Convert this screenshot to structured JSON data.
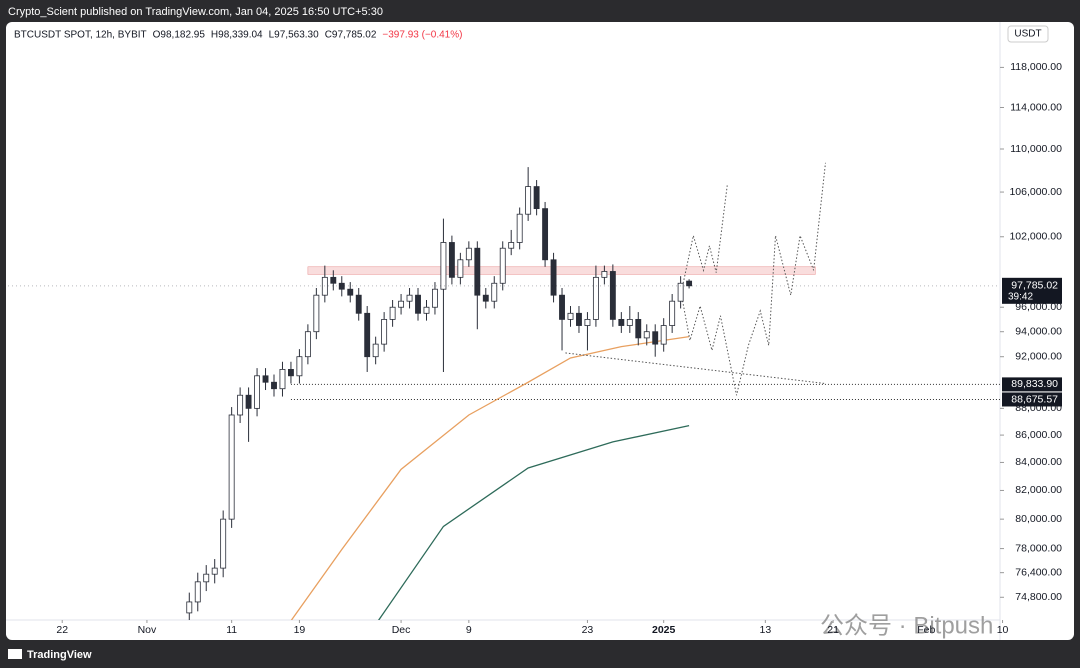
{
  "header": "Crypto_Scient published on TradingView.com, Jan 04, 2025 16:50 UTC+5:30",
  "footer": "TradingView",
  "watermark": "公众号 · Bitpush",
  "chart_data": {
    "type": "candlestick",
    "legend": [
      "BTCUSDT SPOT, 12h, BYBIT",
      "O98,182.95",
      "H98,339.04",
      "L97,563.30",
      "C97,785.02",
      "−397.93 (−0.41%)"
    ],
    "currency": "USDT",
    "log_scale": true,
    "up_color": "#ffffff",
    "down_color": "#2a2e39",
    "wick_color": "#2a2e39",
    "xlim": [
      -6.4,
      110.7
    ],
    "xticks": [
      {
        "value": 0,
        "label": "22"
      },
      {
        "value": 10,
        "label": "Nov"
      },
      {
        "value": 20,
        "label": "11"
      },
      {
        "value": 28,
        "label": "19"
      },
      {
        "value": 40,
        "label": "Dec"
      },
      {
        "value": 48,
        "label": "9"
      },
      {
        "value": 62,
        "label": "23"
      },
      {
        "value": 71,
        "label": "2025"
      },
      {
        "value": 83,
        "label": "13"
      },
      {
        "value": 91,
        "label": "21"
      },
      {
        "value": 102,
        "label": "Feb"
      },
      {
        "value": 111,
        "label": "10"
      }
    ],
    "ylim": [
      72100,
      122700
    ],
    "yticks": [
      {
        "value": 74800,
        "label": "74,800.00"
      },
      {
        "value": 76400,
        "label": "76,400.00"
      },
      {
        "value": 78000,
        "label": "78,000.00"
      },
      {
        "value": 80000,
        "label": "80,000.00"
      },
      {
        "value": 82000,
        "label": "82,000.00"
      },
      {
        "value": 84000,
        "label": "84,000.00"
      },
      {
        "value": 86000,
        "label": "86,000.00"
      },
      {
        "value": 88000,
        "label": "88,000.00"
      },
      {
        "value": 92000,
        "label": "92,000.00"
      },
      {
        "value": 94000,
        "label": "94,000.00"
      },
      {
        "value": 96000,
        "label": "96,000.00"
      },
      {
        "value": 102000,
        "label": "102,000.00"
      },
      {
        "value": 106000,
        "label": "106,000.00"
      },
      {
        "value": 110000,
        "label": "110,000.00"
      },
      {
        "value": 114000,
        "label": "114,000.00"
      },
      {
        "value": 118000,
        "label": "118,000.00"
      }
    ],
    "x": [
      15,
      16,
      17,
      18,
      19,
      20,
      21,
      22,
      23,
      24,
      25,
      26,
      27,
      28,
      29,
      30,
      31,
      32,
      33,
      34,
      35,
      36,
      37,
      38,
      39,
      40,
      41,
      42,
      43,
      44,
      45,
      46,
      47,
      48,
      49,
      50,
      51,
      52,
      53,
      54,
      55,
      56,
      57,
      58,
      59,
      60,
      61,
      62,
      63,
      64,
      65,
      66,
      67,
      68,
      69,
      70,
      71,
      72,
      73,
      74
    ],
    "open": [
      73800,
      74500,
      75800,
      76300,
      76700,
      80000,
      87500,
      89000,
      88000,
      90500,
      90000,
      89500,
      91000,
      90500,
      92000,
      94000,
      97000,
      98500,
      98000,
      97500,
      97000,
      95500,
      92000,
      93000,
      95000,
      96000,
      96500,
      97000,
      95500,
      96000,
      97500,
      101500,
      98500,
      100000,
      101000,
      97000,
      96500,
      98000,
      101000,
      101500,
      104000,
      106500,
      104500,
      100000,
      97000,
      95000,
      95500,
      94500,
      95000,
      98500,
      99000,
      95000,
      94500,
      95000,
      93500,
      94000,
      93000,
      94500,
      96500,
      98182.95
    ],
    "high": [
      75100,
      76400,
      76900,
      77300,
      80600,
      88100,
      89600,
      89600,
      91100,
      91100,
      90600,
      91600,
      91600,
      92600,
      94600,
      97600,
      99500,
      99100,
      98600,
      98100,
      97600,
      96100,
      93600,
      95600,
      96600,
      97100,
      97600,
      97600,
      96600,
      98100,
      103600,
      102100,
      100600,
      101600,
      101600,
      97600,
      98600,
      101600,
      102600,
      104600,
      108300,
      107100,
      105100,
      100600,
      97600,
      96100,
      96100,
      95600,
      99500,
      99500,
      99600,
      95600,
      96100,
      95600,
      94600,
      94600,
      95100,
      97100,
      98600,
      98339.04
    ],
    "low": [
      73200,
      73900,
      75200,
      75700,
      76100,
      79400,
      86900,
      85500,
      87400,
      89400,
      88900,
      88900,
      89900,
      89900,
      91400,
      93400,
      96400,
      97400,
      96900,
      96400,
      94900,
      90800,
      91400,
      92400,
      94400,
      95400,
      95900,
      94900,
      94900,
      95400,
      90800,
      97900,
      97900,
      99400,
      94200,
      95900,
      95900,
      97400,
      100400,
      100900,
      103400,
      103900,
      99400,
      96400,
      92500,
      94400,
      93900,
      92500,
      94400,
      97900,
      94400,
      93900,
      93900,
      92900,
      92900,
      92000,
      92400,
      93900,
      95900,
      97563.3
    ],
    "close": [
      74500,
      75800,
      76300,
      76700,
      80000,
      87500,
      89000,
      88000,
      90500,
      90000,
      89500,
      91000,
      90500,
      92000,
      94000,
      97000,
      98500,
      98000,
      97500,
      97000,
      95500,
      92000,
      93000,
      95000,
      96000,
      96500,
      97000,
      95500,
      96000,
      97500,
      101500,
      98500,
      100000,
      101000,
      97000,
      96500,
      98000,
      101000,
      101500,
      104000,
      106500,
      104500,
      100000,
      97000,
      95000,
      95500,
      94500,
      95000,
      98500,
      99000,
      95000,
      94500,
      95000,
      93500,
      94000,
      93000,
      94500,
      96500,
      98000,
      97785.02
    ],
    "last_price": {
      "value": 97785.02,
      "label": "97,785.02"
    },
    "countdown": "39:42",
    "zone": {
      "x": [
        29,
        88.9
      ],
      "y": [
        98750,
        99400
      ],
      "color": "#f5c6c6"
    },
    "hlines": [
      {
        "value": 89833.9,
        "label": "89,833.90",
        "x_start": 27
      },
      {
        "value": 88675.57,
        "label": "88,675.57",
        "x_start": 27
      }
    ],
    "lines": [
      {
        "color": "#e8a060",
        "style": "solid",
        "x": [
          27,
          33,
          40,
          48,
          55,
          60,
          66,
          74
        ],
        "values": [
          73300,
          77940,
          83500,
          87500,
          90000,
          91900,
          92800,
          93600
        ]
      },
      {
        "color": "#2e6b5a",
        "style": "solid",
        "x": [
          37.3,
          45,
          55,
          65,
          74
        ],
        "values": [
          73300,
          79500,
          83600,
          85500,
          86700
        ]
      },
      {
        "color": "#555555",
        "style": "dotted",
        "x": [
          59.4,
          90.1
        ],
        "values": [
          92300,
          89900
        ]
      },
      {
        "color": "#555555",
        "style": "dotted",
        "x": [
          73.3,
          74.5,
          75.7,
          76.4,
          77.2,
          78.5
        ],
        "values": [
          98000,
          102100,
          99100,
          101200,
          98900,
          106600
        ]
      },
      {
        "color": "#555555",
        "style": "dotted",
        "x": [
          73,
          74.1,
          75.3,
          76.7,
          77.7,
          79.6,
          81,
          82.4,
          83.4,
          84.2,
          86,
          87.1,
          88.7,
          90.1
        ],
        "values": [
          97400,
          93300,
          96100,
          92500,
          95300,
          89000,
          92900,
          95700,
          92900,
          102100,
          97000,
          102100,
          99100,
          108700
        ]
      }
    ]
  }
}
